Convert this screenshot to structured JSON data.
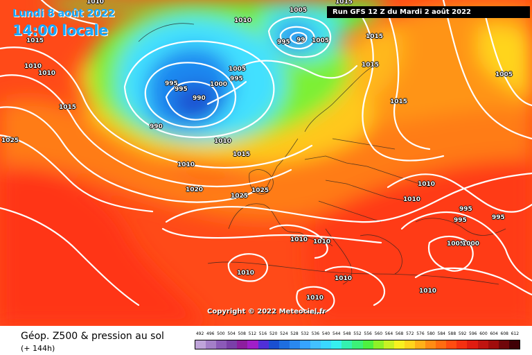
{
  "header": {
    "date_line": "Lundi 8 août 2022",
    "time_line": "14:00 locale",
    "run_banner": "Run GFS 12 Z du Mardi 2 août 2022",
    "copyright": "Copyright © 2022 Meteociel.fr"
  },
  "footer": {
    "title": "Géop. Z500 & pression au sol",
    "subtitle": "(+ 144h)"
  },
  "scale": {
    "values": [
      "492",
      "496",
      "500",
      "504",
      "508",
      "512",
      "516",
      "520",
      "524",
      "528",
      "532",
      "536",
      "540",
      "544",
      "548",
      "552",
      "556",
      "560",
      "564",
      "568",
      "572",
      "576",
      "580",
      "584",
      "588",
      "592",
      "596",
      "600",
      "604",
      "608",
      "612"
    ],
    "colors": [
      "#bfa4d9",
      "#a47fc8",
      "#8b5ab8",
      "#7a3fa8",
      "#8c1e9e",
      "#a01ec8",
      "#5030d8",
      "#1a4fd0",
      "#1e6ee0",
      "#2a88f0",
      "#36a4ff",
      "#42c0ff",
      "#3ad8ff",
      "#36f0f0",
      "#34f0b0",
      "#3cf078",
      "#4ef040",
      "#8ef028",
      "#c8f024",
      "#f8f020",
      "#ffd41c",
      "#ffb018",
      "#ff8c14",
      "#ff6c10",
      "#ff4c10",
      "#f43010",
      "#e01c10",
      "#c01410",
      "#a00c0c",
      "#70060a",
      "#400006"
    ]
  },
  "colors": {
    "hot_red": "#ff3e18",
    "orange": "#ff7c14",
    "yellow": "#ffd41c",
    "green": "#5ef040",
    "cyan": "#3ad8ff",
    "blue": "#2a88f0",
    "isobar": "#ffffff"
  },
  "pressure_labels": [
    {
      "text": "1010"
    },
    {
      "text": "1015"
    },
    {
      "text": "1010"
    },
    {
      "text": "1010"
    },
    {
      "text": "1015"
    },
    {
      "text": "1025"
    },
    {
      "text": "1010"
    },
    {
      "text": "1005"
    },
    {
      "text": "995"
    },
    {
      "text": "99"
    },
    {
      "text": "1005"
    },
    {
      "text": "1015"
    },
    {
      "text": "1015"
    },
    {
      "text": "1015"
    },
    {
      "text": "1005"
    },
    {
      "text": "995"
    },
    {
      "text": "995"
    },
    {
      "text": "990"
    },
    {
      "text": "1000"
    },
    {
      "text": "1005"
    },
    {
      "text": "995"
    },
    {
      "text": "990"
    },
    {
      "text": "1010"
    },
    {
      "text": "1010"
    },
    {
      "text": "1015"
    },
    {
      "text": "1020"
    },
    {
      "text": "1025"
    },
    {
      "text": "1025"
    },
    {
      "text": "1015"
    },
    {
      "text": "1010"
    },
    {
      "text": "1010"
    },
    {
      "text": "995"
    },
    {
      "text": "995"
    },
    {
      "text": "995"
    },
    {
      "text": "1005"
    },
    {
      "text": "1000"
    },
    {
      "text": "1010"
    },
    {
      "text": "1010"
    },
    {
      "text": "1010"
    },
    {
      "text": "1010"
    },
    {
      "text": "1010"
    },
    {
      "text": "1010"
    }
  ]
}
